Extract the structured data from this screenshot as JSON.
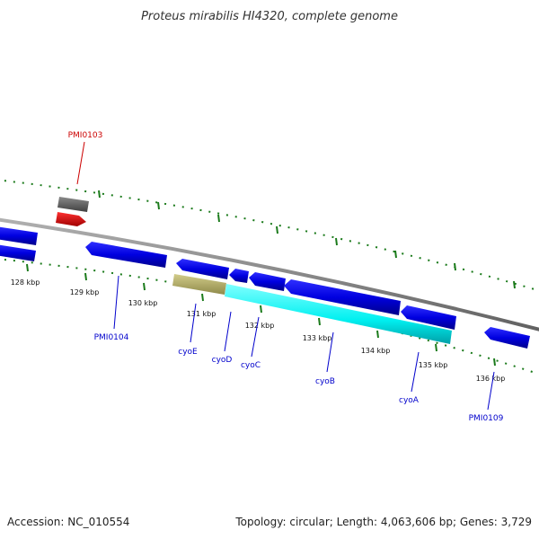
{
  "title": "Proteus mirabilis HI4320, complete genome",
  "footer": {
    "accession": "Accession: NC_010554",
    "summary": "Topology: circular; Length: 4,063,606 bp; Genes: 3,729"
  },
  "colors": {
    "backbone": "#808080",
    "cds_forward": "#0000ee",
    "cds_reverse": "#0000ee",
    "highlight_red": "#ee0000",
    "gray_feature": "#606060",
    "khaki": "#bdb76b",
    "cyan": "#00ffff",
    "tick": "#1a7a1a",
    "label_blue": "#0000cc",
    "label_red": "#cc0000"
  },
  "ticks": [
    {
      "label": "128 kbp"
    },
    {
      "label": "129 kbp"
    },
    {
      "label": "130 kbp"
    },
    {
      "label": "131 kbp"
    },
    {
      "label": "132 kbp"
    },
    {
      "label": "133 kbp"
    },
    {
      "label": "134 kbp"
    },
    {
      "label": "135 kbp"
    },
    {
      "label": "136 kbp"
    }
  ],
  "gene_labels": [
    {
      "name": "PMI0103",
      "color": "label_red"
    },
    {
      "name": "PMI0104",
      "color": "label_blue"
    },
    {
      "name": "cyoE",
      "color": "label_blue"
    },
    {
      "name": "cyoD",
      "color": "label_blue"
    },
    {
      "name": "cyoC",
      "color": "label_blue"
    },
    {
      "name": "cyoB",
      "color": "label_blue"
    },
    {
      "name": "cyoA",
      "color": "label_blue"
    },
    {
      "name": "PMI0109",
      "color": "label_blue"
    }
  ]
}
